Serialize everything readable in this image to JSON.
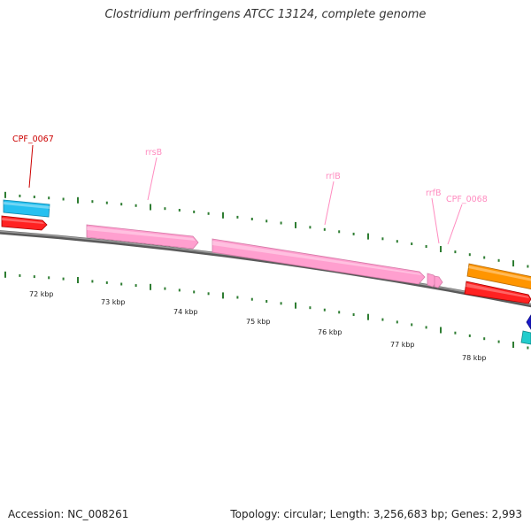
{
  "title": "Clostridium perfringens ATCC 13124, complete genome",
  "footer": {
    "accession": "Accession: NC_008261",
    "summary": "Topology: circular; Length: 3,256,683 bp; Genes: 2,993"
  },
  "tick_labels": [
    "72 kbp",
    "73 kbp",
    "74 kbp",
    "75 kbp",
    "76 kbp",
    "77 kbp",
    "78 kbp"
  ],
  "gene_labels": {
    "cpf0067": "CPF_0067",
    "rrsb": "rrsB",
    "rrlb": "rrlB",
    "rrfb": "rrfB",
    "cpf0068": "CPF_0068"
  },
  "colors": {
    "backbone": "#7a7a7a",
    "tick": "#2e7d32",
    "rrna": "#ff9fcf",
    "cds_forward": "#ff2222",
    "cds_blue": "#26c0f0",
    "cds_orange": "#ff9500",
    "cds_navy": "#1a1acc",
    "cds_cyan": "#22cccc",
    "label_red": "#cc0000",
    "label_pink": "#ff8cc0"
  }
}
